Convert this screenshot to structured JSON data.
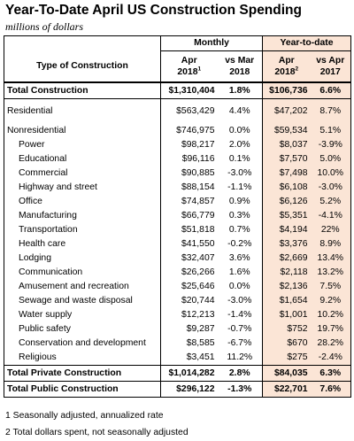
{
  "title": "Year-To-Date April US Construction Spending",
  "subtitle": "millions of dollars",
  "header": {
    "monthly": "Monthly",
    "ytd": "Year-to-date",
    "type_col": "Type of Construction",
    "col1_line1": "Apr",
    "col1_line2": "2018",
    "col1_sup": "1",
    "col2_line1": "vs Mar",
    "col2_line2": "2018",
    "col3_line1": "Apr",
    "col3_line2": "2018",
    "col3_sup": "2",
    "col4_line1": "vs Apr",
    "col4_line2": "2017"
  },
  "rows": {
    "total": {
      "label": "Total Construction",
      "apr": "$1,310,404",
      "vs_mar": "1.8%",
      "ytd": "$106,736",
      "vs_apr": "6.6%"
    },
    "residential": {
      "label": "Residential",
      "apr": "$563,429",
      "vs_mar": "4.4%",
      "ytd": "$47,202",
      "vs_apr": "8.7%"
    },
    "nonresidential": {
      "label": "Nonresidential",
      "apr": "$746,975",
      "vs_mar": "0.0%",
      "ytd": "$59,534",
      "vs_apr": "5.1%"
    },
    "items": [
      {
        "label": "Power",
        "apr": "$98,217",
        "vs_mar": "2.0%",
        "ytd": "$8,037",
        "vs_apr": "-3.9%"
      },
      {
        "label": "Educational",
        "apr": "$96,116",
        "vs_mar": "0.1%",
        "ytd": "$7,570",
        "vs_apr": "5.0%"
      },
      {
        "label": "Commercial",
        "apr": "$90,885",
        "vs_mar": "-3.0%",
        "ytd": "$7,498",
        "vs_apr": "10.0%"
      },
      {
        "label": "Highway and street",
        "apr": "$88,154",
        "vs_mar": "-1.1%",
        "ytd": "$6,108",
        "vs_apr": "-3.0%"
      },
      {
        "label": "Office",
        "apr": "$74,857",
        "vs_mar": "0.9%",
        "ytd": "$6,126",
        "vs_apr": "5.2%"
      },
      {
        "label": "Manufacturing",
        "apr": "$66,779",
        "vs_mar": "0.3%",
        "ytd": "$5,351",
        "vs_apr": "-4.1%"
      },
      {
        "label": "Transportation",
        "apr": "$51,818",
        "vs_mar": "0.7%",
        "ytd": "$4,194",
        "vs_apr": "22%"
      },
      {
        "label": "Health care",
        "apr": "$41,550",
        "vs_mar": "-0.2%",
        "ytd": "$3,376",
        "vs_apr": "8.9%"
      },
      {
        "label": "Lodging",
        "apr": "$32,407",
        "vs_mar": "3.6%",
        "ytd": "$2,669",
        "vs_apr": "13.4%"
      },
      {
        "label": "Communication",
        "apr": "$26,266",
        "vs_mar": "1.6%",
        "ytd": "$2,118",
        "vs_apr": "13.2%"
      },
      {
        "label": "Amusement and recreation",
        "apr": "$25,646",
        "vs_mar": "0.0%",
        "ytd": "$2,136",
        "vs_apr": "7.5%"
      },
      {
        "label": "Sewage and waste disposal",
        "apr": "$20,744",
        "vs_mar": "-3.0%",
        "ytd": "$1,654",
        "vs_apr": "9.2%"
      },
      {
        "label": "Water supply",
        "apr": "$12,213",
        "vs_mar": "-1.4%",
        "ytd": "$1,001",
        "vs_apr": "10.2%"
      },
      {
        "label": "Public safety",
        "apr": "$9,287",
        "vs_mar": "-0.7%",
        "ytd": "$752",
        "vs_apr": "19.7%"
      },
      {
        "label": "Conservation and development",
        "apr": "$8,585",
        "vs_mar": "-6.7%",
        "ytd": "$670",
        "vs_apr": "28.2%"
      },
      {
        "label": "Religious",
        "apr": "$3,451",
        "vs_mar": "11.2%",
        "ytd": "$275",
        "vs_apr": "-2.4%"
      }
    ],
    "private": {
      "label": "Total Private Construction",
      "apr": "$1,014,282",
      "vs_mar": "2.8%",
      "ytd": "$84,035",
      "vs_apr": "6.3%"
    },
    "public": {
      "label": "Total Public Construction",
      "apr": "$296,122",
      "vs_mar": "-1.3%",
      "ytd": "$22,701",
      "vs_apr": "7.6%"
    }
  },
  "footnotes": [
    "1 Seasonally adjusted, annualized rate",
    "2 Total dollars spent, not seasonally adjusted"
  ],
  "colors": {
    "ytd_shade": "#fbe5d6",
    "border": "#000000"
  }
}
